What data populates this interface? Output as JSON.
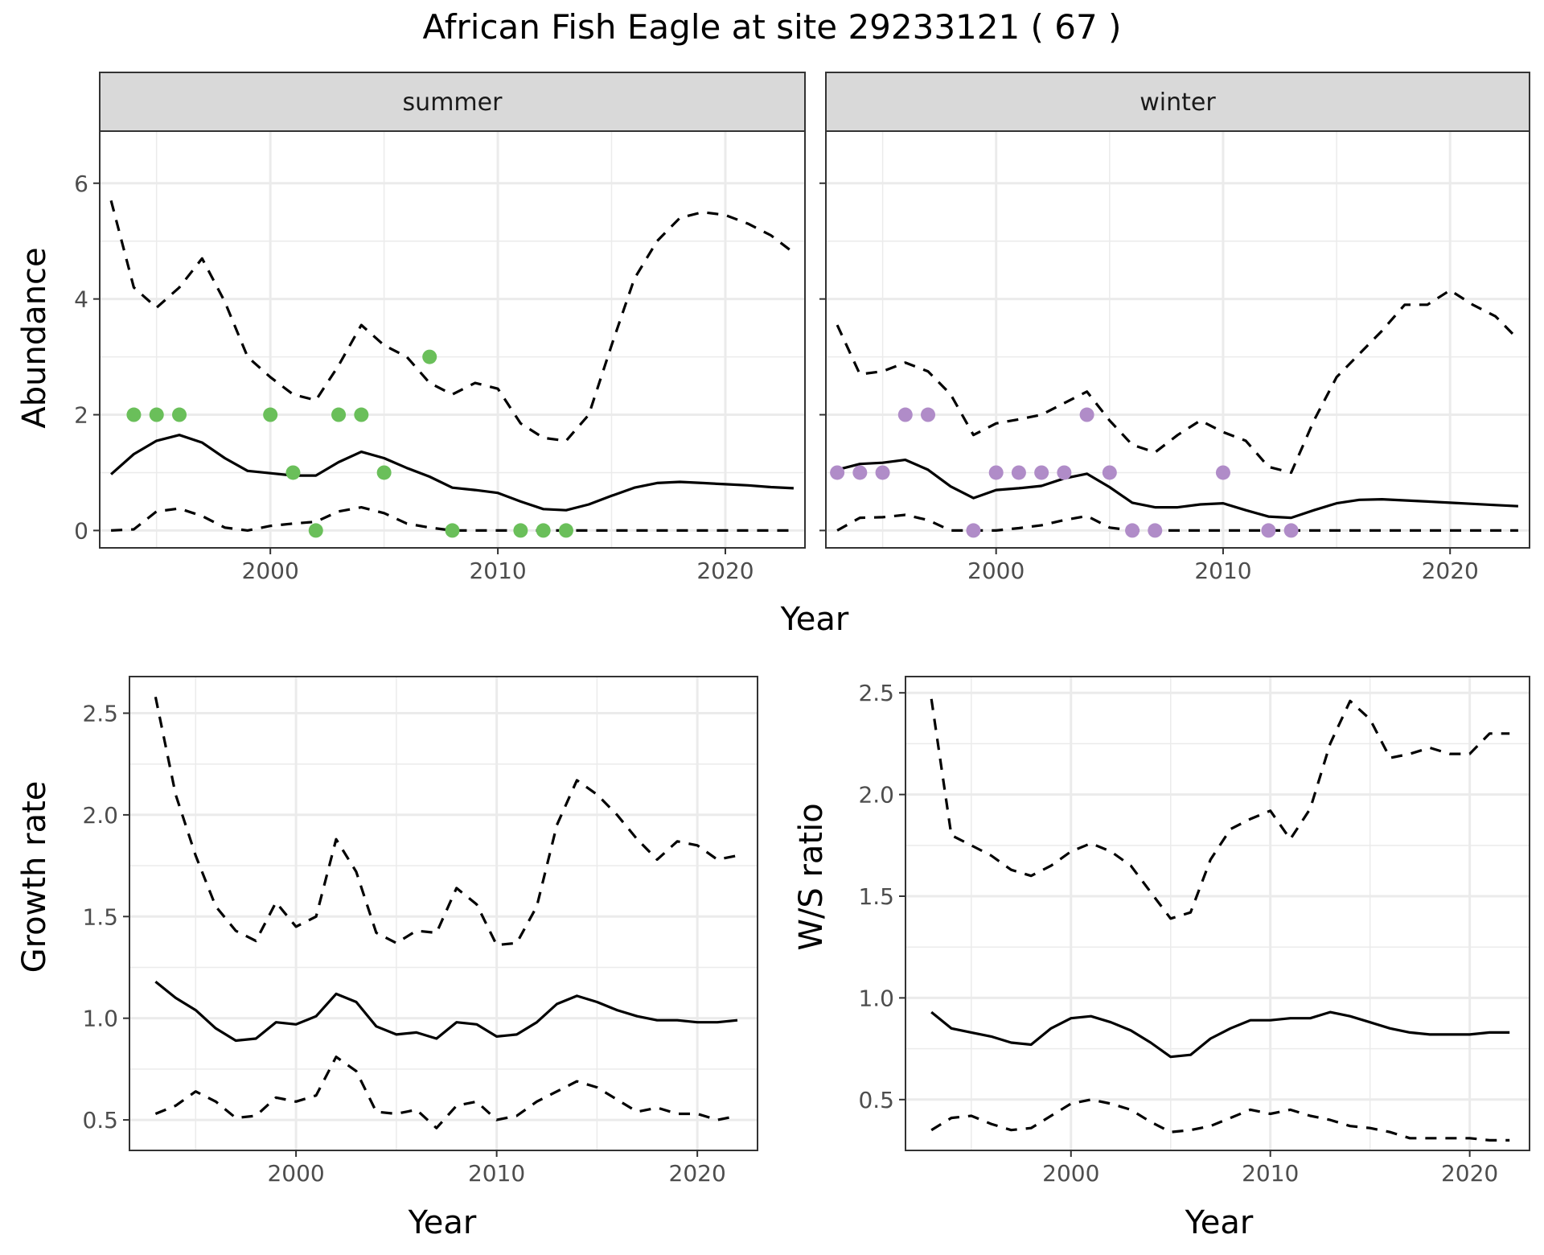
{
  "figure": {
    "title": "African Fish Eagle at site 29233121 ( 67 )",
    "panels": {
      "abundance": {
        "xlabel": "Year",
        "ylabel": "Abundance"
      },
      "growth": {
        "xlabel": "Year",
        "ylabel": "Growth rate"
      },
      "ratio": {
        "xlabel": "Year",
        "ylabel": "W/S ratio"
      }
    }
  },
  "colors": {
    "summer_points": "#6abf5a",
    "winter_points": "#b08cc8",
    "lines": "#000000",
    "strip_bg": "#d9d9d9",
    "grid": "#ebebeb"
  },
  "chart_data": [
    {
      "id": "abundance",
      "type": "line",
      "facets": [
        "summer",
        "winter"
      ],
      "xlim": [
        1992.5,
        2023.5
      ],
      "ylim": [
        -0.3,
        6.9
      ],
      "xticks": [
        2000,
        2010,
        2020
      ],
      "yticks": [
        0,
        2,
        4,
        6
      ],
      "xlabel": "Year",
      "ylabel": "Abundance",
      "panels": [
        {
          "facet": "summer",
          "x": [
            1993,
            1994,
            1995,
            1996,
            1997,
            1998,
            1999,
            2000,
            2001,
            2002,
            2003,
            2004,
            2005,
            2006,
            2007,
            2008,
            2009,
            2010,
            2011,
            2012,
            2013,
            2014,
            2015,
            2016,
            2017,
            2018,
            2019,
            2020,
            2021,
            2022,
            2023
          ],
          "mean": [
            0.97,
            1.32,
            1.55,
            1.65,
            1.52,
            1.25,
            1.03,
            0.99,
            0.95,
            0.95,
            1.18,
            1.36,
            1.25,
            1.08,
            0.93,
            0.74,
            0.7,
            0.65,
            0.5,
            0.37,
            0.35,
            0.45,
            0.6,
            0.74,
            0.82,
            0.84,
            0.82,
            0.8,
            0.78,
            0.75,
            0.73
          ],
          "upper": [
            5.7,
            4.2,
            3.85,
            4.2,
            4.7,
            3.95,
            3.0,
            2.65,
            2.35,
            2.25,
            2.85,
            3.55,
            3.2,
            3.0,
            2.55,
            2.35,
            2.55,
            2.45,
            1.85,
            1.6,
            1.55,
            2.0,
            3.2,
            4.35,
            5.0,
            5.4,
            5.5,
            5.45,
            5.3,
            5.1,
            4.8
          ],
          "lower": [
            0.0,
            0.02,
            0.33,
            0.38,
            0.25,
            0.05,
            0.0,
            0.08,
            0.12,
            0.15,
            0.33,
            0.4,
            0.3,
            0.12,
            0.05,
            0.0,
            0.0,
            0.0,
            0.0,
            0.0,
            0.0,
            0.0,
            0.0,
            0.0,
            0.0,
            0.0,
            0.0,
            0.0,
            0.0,
            0.0,
            0.0
          ],
          "points": {
            "x": [
              1994,
              1995,
              1996,
              2000,
              2001,
              2002,
              2003,
              2004,
              2005,
              2007,
              2008,
              2011,
              2012,
              2013
            ],
            "y": [
              2,
              2,
              2,
              2,
              1,
              0,
              2,
              2,
              1,
              3,
              0,
              0,
              0,
              0
            ]
          }
        },
        {
          "facet": "winter",
          "x": [
            1993,
            1994,
            1995,
            1996,
            1997,
            1998,
            1999,
            2000,
            2001,
            2002,
            2003,
            2004,
            2005,
            2006,
            2007,
            2008,
            2009,
            2010,
            2011,
            2012,
            2013,
            2014,
            2015,
            2016,
            2017,
            2018,
            2019,
            2020,
            2021,
            2022,
            2023
          ],
          "mean": [
            1.05,
            1.15,
            1.17,
            1.22,
            1.05,
            0.76,
            0.56,
            0.7,
            0.73,
            0.77,
            0.9,
            0.98,
            0.75,
            0.48,
            0.4,
            0.4,
            0.45,
            0.47,
            0.35,
            0.24,
            0.22,
            0.35,
            0.47,
            0.53,
            0.54,
            0.52,
            0.5,
            0.48,
            0.46,
            0.44,
            0.42
          ],
          "upper": [
            3.55,
            2.7,
            2.75,
            2.9,
            2.75,
            2.35,
            1.65,
            1.85,
            1.92,
            2.0,
            2.2,
            2.4,
            1.9,
            1.48,
            1.35,
            1.65,
            1.9,
            1.7,
            1.55,
            1.1,
            1.0,
            1.9,
            2.65,
            3.05,
            3.45,
            3.9,
            3.9,
            4.15,
            3.9,
            3.7,
            3.3
          ],
          "lower": [
            0.0,
            0.22,
            0.23,
            0.27,
            0.18,
            0.0,
            0.0,
            0.0,
            0.04,
            0.09,
            0.18,
            0.25,
            0.05,
            0.0,
            0.0,
            0.0,
            0.0,
            0.0,
            0.0,
            0.0,
            0.0,
            0.0,
            0.0,
            0.0,
            0.0,
            0.0,
            0.0,
            0.0,
            0.0,
            0.0,
            0.0
          ],
          "points": {
            "x": [
              1993,
              1994,
              1995,
              1996,
              1997,
              1999,
              2000,
              2001,
              2002,
              2003,
              2004,
              2005,
              2006,
              2007,
              2010,
              2012,
              2013
            ],
            "y": [
              1,
              1,
              1,
              2,
              2,
              0,
              1,
              1,
              1,
              1,
              2,
              1,
              0,
              0,
              1,
              0,
              0
            ]
          }
        }
      ]
    },
    {
      "id": "growth",
      "type": "line",
      "xlim": [
        1991.7,
        2023.0
      ],
      "ylim": [
        0.35,
        2.68
      ],
      "xticks": [
        2000,
        2010,
        2020
      ],
      "yticks": [
        0.5,
        1.0,
        1.5,
        2.0,
        2.5
      ],
      "ytick_labels": [
        "0.5",
        "1.0",
        "1.5",
        "2.0",
        "2.5"
      ],
      "xlabel": "Year",
      "ylabel": "Growth rate",
      "x": [
        1993,
        1994,
        1995,
        1996,
        1997,
        1998,
        1999,
        2000,
        2001,
        2002,
        2003,
        2004,
        2005,
        2006,
        2007,
        2008,
        2009,
        2010,
        2011,
        2012,
        2013,
        2014,
        2015,
        2016,
        2017,
        2018,
        2019,
        2020,
        2021,
        2022
      ],
      "mean": [
        1.18,
        1.1,
        1.04,
        0.95,
        0.89,
        0.9,
        0.98,
        0.97,
        1.01,
        1.12,
        1.08,
        0.96,
        0.92,
        0.93,
        0.9,
        0.98,
        0.97,
        0.91,
        0.92,
        0.98,
        1.07,
        1.11,
        1.08,
        1.04,
        1.01,
        0.99,
        0.99,
        0.98,
        0.98,
        0.99
      ],
      "upper": [
        2.58,
        2.1,
        1.8,
        1.55,
        1.43,
        1.38,
        1.57,
        1.45,
        1.5,
        1.88,
        1.72,
        1.42,
        1.37,
        1.43,
        1.42,
        1.64,
        1.56,
        1.36,
        1.37,
        1.55,
        1.95,
        2.17,
        2.1,
        2.0,
        1.88,
        1.78,
        1.87,
        1.85,
        1.78,
        1.8
      ],
      "lower": [
        0.53,
        0.57,
        0.64,
        0.59,
        0.51,
        0.52,
        0.61,
        0.59,
        0.62,
        0.81,
        0.74,
        0.54,
        0.53,
        0.55,
        0.46,
        0.57,
        0.59,
        0.5,
        0.52,
        0.59,
        0.64,
        0.69,
        0.66,
        0.6,
        0.54,
        0.56,
        0.53,
        0.53,
        0.5,
        0.52
      ]
    },
    {
      "id": "ratio",
      "type": "line",
      "xlim": [
        1991.7,
        2023.0
      ],
      "ylim": [
        0.25,
        2.58
      ],
      "xticks": [
        2000,
        2010,
        2020
      ],
      "yticks": [
        0.5,
        1.0,
        1.5,
        2.0,
        2.5
      ],
      "ytick_labels": [
        "0.5",
        "1.0",
        "1.5",
        "2.0",
        "2.5"
      ],
      "xlabel": "Year",
      "ylabel": "W/S ratio",
      "x": [
        1993,
        1994,
        1995,
        1996,
        1997,
        1998,
        1999,
        2000,
        2001,
        2002,
        2003,
        2004,
        2005,
        2006,
        2007,
        2008,
        2009,
        2010,
        2011,
        2012,
        2013,
        2014,
        2015,
        2016,
        2017,
        2018,
        2019,
        2020,
        2021,
        2022
      ],
      "mean": [
        0.93,
        0.85,
        0.83,
        0.81,
        0.78,
        0.77,
        0.85,
        0.9,
        0.91,
        0.88,
        0.84,
        0.78,
        0.71,
        0.72,
        0.8,
        0.85,
        0.89,
        0.89,
        0.9,
        0.9,
        0.93,
        0.91,
        0.88,
        0.85,
        0.83,
        0.82,
        0.82,
        0.82,
        0.83,
        0.83
      ],
      "upper": [
        2.47,
        1.8,
        1.75,
        1.7,
        1.63,
        1.6,
        1.65,
        1.72,
        1.76,
        1.72,
        1.65,
        1.52,
        1.39,
        1.42,
        1.68,
        1.83,
        1.88,
        1.92,
        1.78,
        1.93,
        2.25,
        2.46,
        2.37,
        2.18,
        2.2,
        2.23,
        2.2,
        2.2,
        2.3,
        2.3
      ],
      "lower": [
        0.35,
        0.41,
        0.42,
        0.38,
        0.35,
        0.36,
        0.42,
        0.48,
        0.5,
        0.48,
        0.45,
        0.39,
        0.34,
        0.35,
        0.37,
        0.41,
        0.45,
        0.43,
        0.45,
        0.42,
        0.4,
        0.37,
        0.36,
        0.34,
        0.31,
        0.31,
        0.31,
        0.31,
        0.3,
        0.3
      ]
    }
  ]
}
